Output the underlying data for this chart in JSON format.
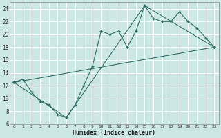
{
  "xlabel": "Humidex (Indice chaleur)",
  "bg_color": "#cce8e4",
  "grid_color": "#ffffff",
  "line_color": "#2e6e65",
  "xlim": [
    -0.5,
    23.5
  ],
  "ylim": [
    6,
    25
  ],
  "xticks": [
    0,
    1,
    2,
    3,
    4,
    5,
    6,
    7,
    8,
    9,
    10,
    11,
    12,
    13,
    14,
    15,
    16,
    17,
    18,
    19,
    20,
    21,
    22,
    23
  ],
  "yticks": [
    6,
    8,
    10,
    12,
    14,
    16,
    18,
    20,
    22,
    24
  ],
  "line1_x": [
    0,
    1,
    2,
    3,
    4,
    5,
    6,
    7,
    8,
    9,
    10,
    11,
    12,
    13,
    14,
    15,
    16,
    17,
    18,
    19,
    20,
    21,
    22,
    23
  ],
  "line1_y": [
    12.5,
    13.0,
    11.0,
    9.5,
    9.0,
    7.5,
    7.0,
    9.0,
    12.0,
    15.0,
    20.5,
    20.0,
    20.5,
    18.0,
    20.5,
    24.5,
    22.5,
    22.0,
    22.0,
    23.5,
    22.0,
    21.0,
    19.5,
    18.0
  ],
  "line2_x": [
    0,
    23
  ],
  "line2_y": [
    12.5,
    18.0
  ],
  "line3_x": [
    0,
    6,
    15,
    23
  ],
  "line3_y": [
    12.5,
    7.0,
    24.5,
    18.0
  ]
}
